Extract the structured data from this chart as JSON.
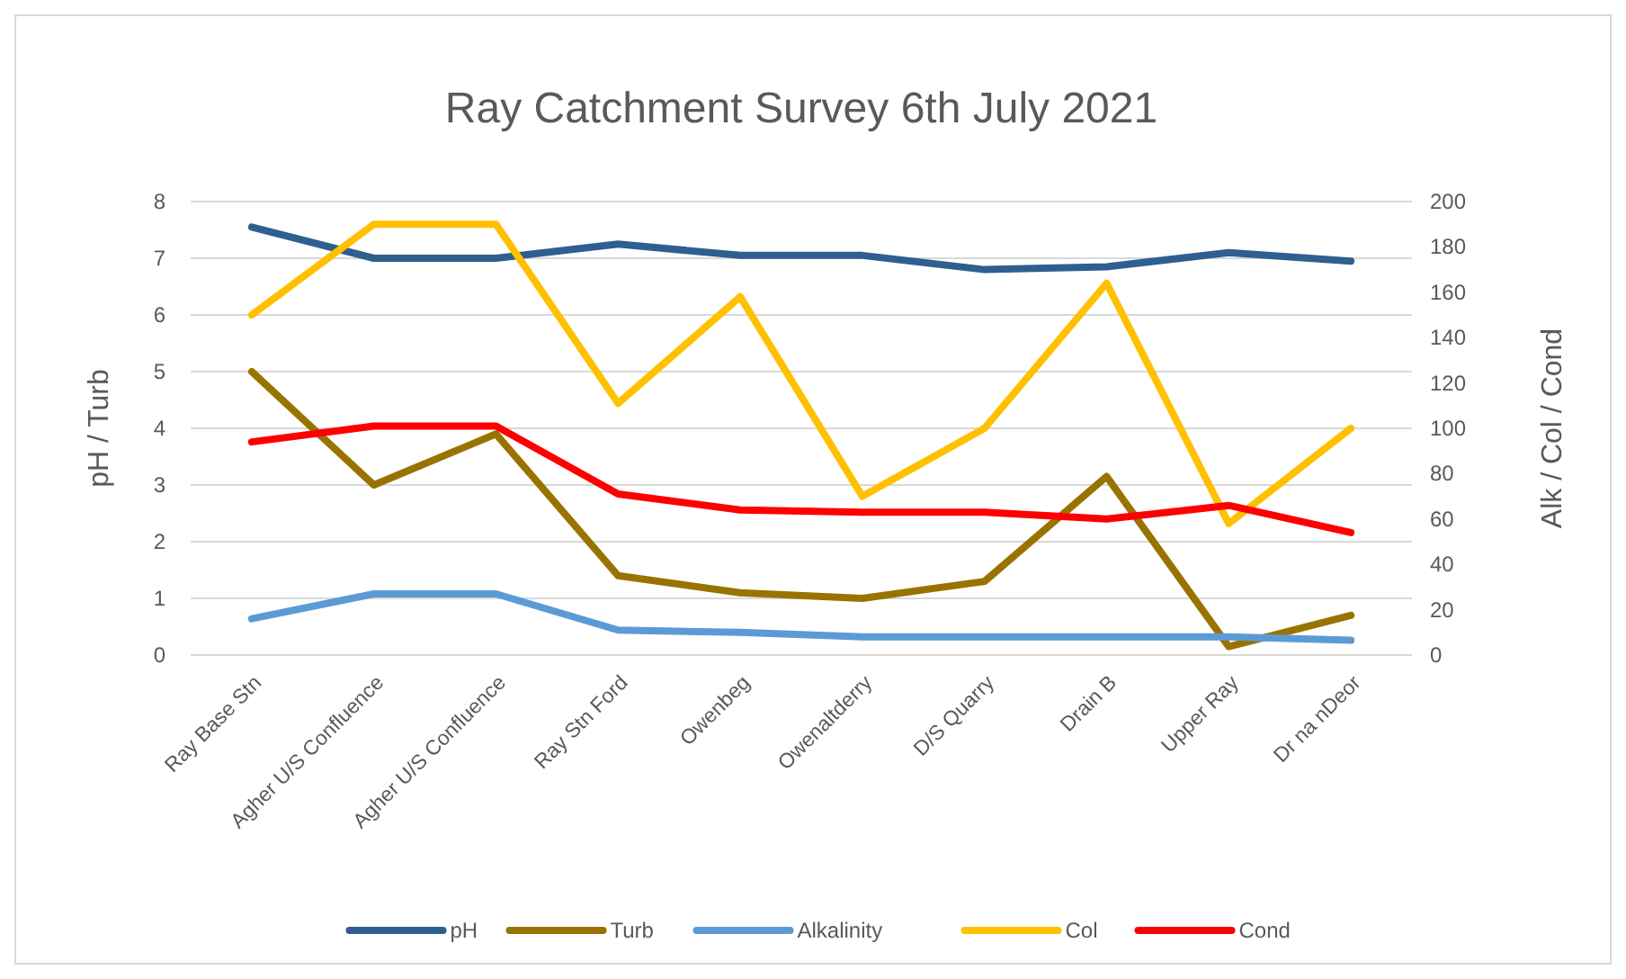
{
  "chart_data": {
    "type": "line",
    "title": "Ray Catchment Survey 6th July 2021",
    "ylabel": "pH / Turb",
    "y2label": "Alk / Col / Cond",
    "categories": [
      "Ray Base Stn",
      "Agher U/S Confluence",
      "Agher U/S Confluence",
      "Ray Stn Ford",
      "Owenbeg",
      "Owenaltderry",
      "D/S Quarry",
      "Drain B",
      "Upper Ray",
      "Dr na nDeor"
    ],
    "series": [
      {
        "name": "pH",
        "color": "#2e5f8f",
        "values": [
          7.55,
          7.0,
          7.0,
          7.25,
          7.05,
          7.05,
          6.8,
          6.85,
          7.1,
          6.95
        ]
      },
      {
        "name": "Turb",
        "color": "#997300",
        "values": [
          5.0,
          3.0,
          3.9,
          1.4,
          1.1,
          1.0,
          1.3,
          3.15,
          0.15,
          0.7
        ]
      },
      {
        "name": "Alkalinity",
        "color": "#5b9bd5",
        "axis": "y2",
        "values": [
          16,
          27,
          27,
          11,
          10,
          8,
          8,
          8,
          8,
          6.5
        ]
      },
      {
        "name": "Col",
        "color": "#ffc000",
        "axis": "y2",
        "values": [
          150,
          190,
          190,
          111,
          158,
          70,
          100,
          164,
          58,
          100
        ]
      },
      {
        "name": "Cond",
        "color": "#ff0000",
        "axis": "y2",
        "values": [
          94,
          101,
          101,
          71,
          64,
          63,
          63,
          60,
          66,
          54
        ]
      }
    ],
    "ylim": [
      0,
      8
    ],
    "yticks": [
      0,
      1,
      2,
      3,
      4,
      5,
      6,
      7,
      8
    ],
    "y2lim": [
      0,
      200
    ],
    "y2ticks": [
      0,
      20,
      40,
      60,
      80,
      100,
      120,
      140,
      160,
      180,
      200
    ],
    "grid": "y",
    "legend": "bottom",
    "marker": "none",
    "line_style": "solid"
  }
}
